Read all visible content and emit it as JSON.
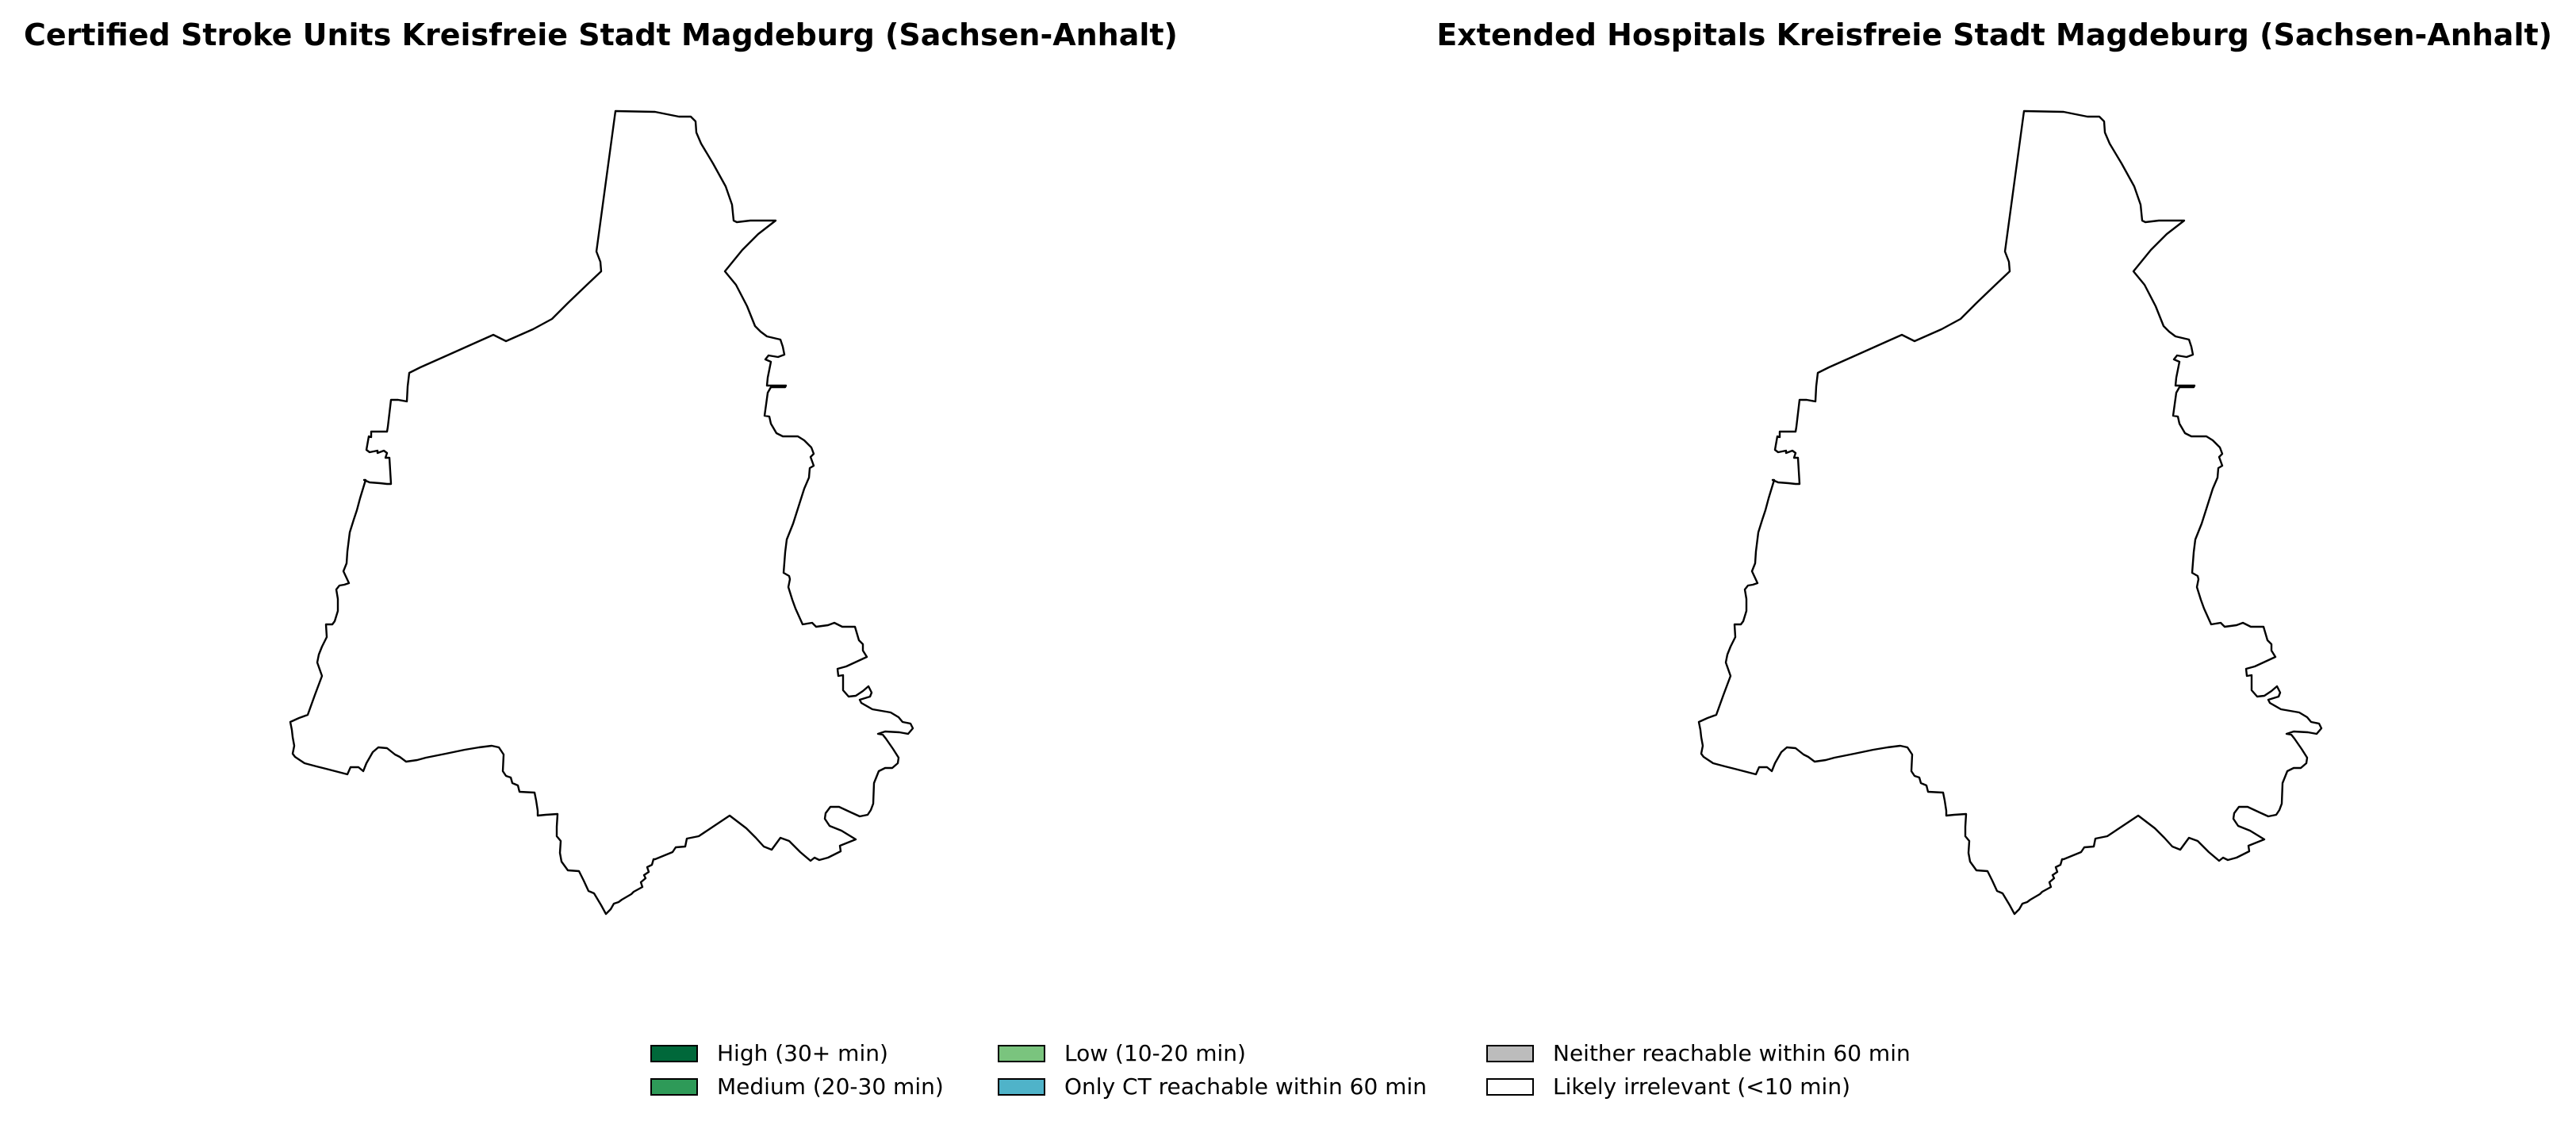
{
  "maps": [
    {
      "title": "Certified Stroke Units Kreisfreie Stadt Magdeburg (Sachsen-Anhalt)"
    },
    {
      "title": "Extended Hospitals Kreisfreie Stadt Magdeburg (Sachsen-Anhalt)"
    }
  ],
  "legend": {
    "items": [
      {
        "label": "High (30+ min)",
        "color": "#00683a"
      },
      {
        "label": "Medium (20-30 min)",
        "color": "#2e9a58"
      },
      {
        "label": "Low (10-20 min)",
        "color": "#7ac47e"
      },
      {
        "label": "Only CT reachable within 60 min",
        "color": "#4fb3c9"
      },
      {
        "label": "Neither reachable within 60 min",
        "color": "#bcbcbc"
      },
      {
        "label": "Likely irrelevant (<10 min)",
        "color": "#ffffff"
      }
    ]
  },
  "boundary": {
    "fill": "#ffffff",
    "stroke": "#000000"
  }
}
